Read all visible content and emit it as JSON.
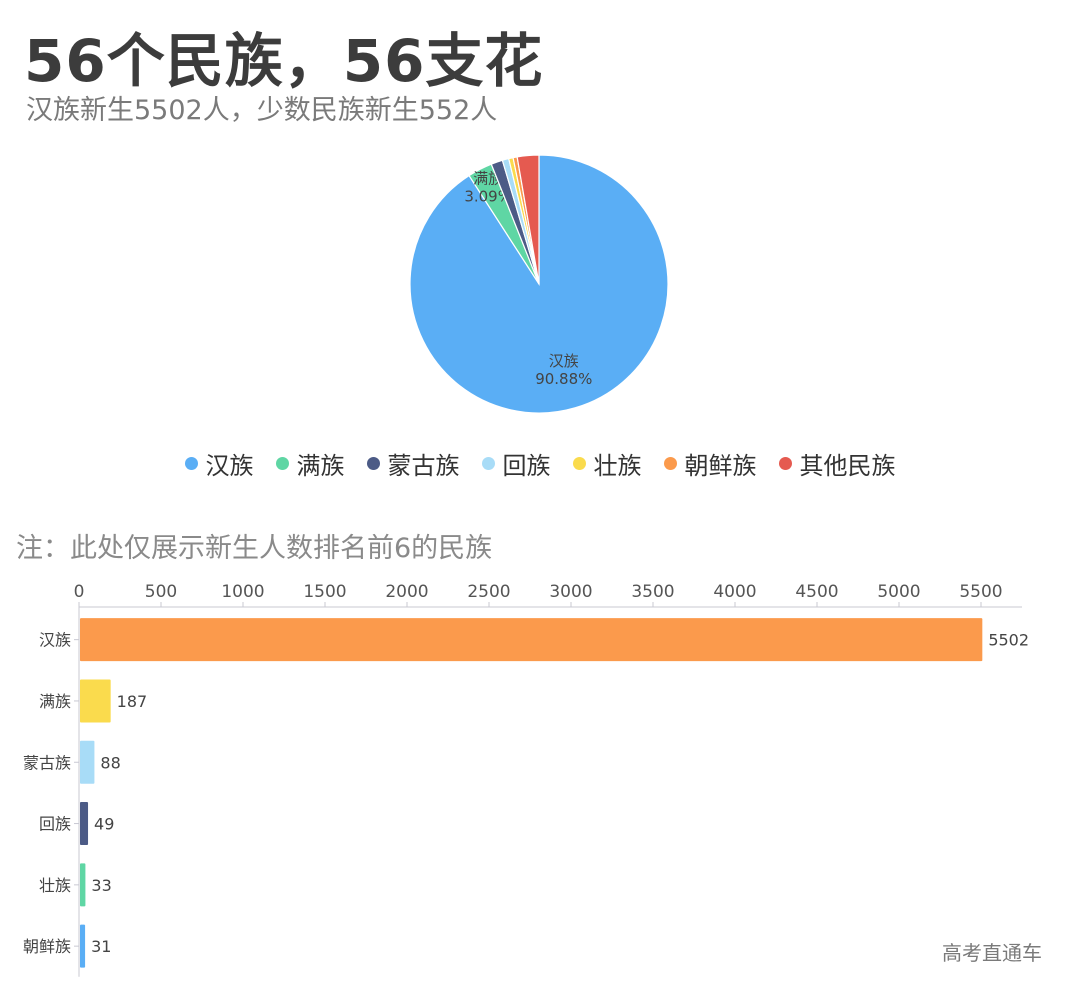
{
  "header": {
    "title": "56个民族，56支花",
    "subtitle": "汉族新生5502人，少数民族新生552人"
  },
  "note": "注：此处仅展示新生人数排名前6的民族",
  "watermark": "高考直通车",
  "colors": {
    "han": "#5aaef5",
    "man": "#5fd6a4",
    "menggu": "#4c5b86",
    "hui": "#a8dcf7",
    "zhuang": "#fadb4d",
    "chaoxian": "#fb9a4c",
    "other": "#e55a50"
  },
  "chart_data": [
    {
      "type": "pie",
      "legend_position": "bottom",
      "series": [
        {
          "name": "汉族",
          "value": 90.88,
          "color": "#5aaef5",
          "label": "汉族",
          "value_label": "90.88%"
        },
        {
          "name": "满族",
          "value": 3.09,
          "color": "#5fd6a4",
          "label": "满族",
          "value_label": "3.09%"
        },
        {
          "name": "蒙古族",
          "value": 1.45,
          "color": "#4c5b86"
        },
        {
          "name": "回族",
          "value": 0.81,
          "color": "#a8dcf7"
        },
        {
          "name": "壮族",
          "value": 0.55,
          "color": "#fadb4d"
        },
        {
          "name": "朝鲜族",
          "value": 0.51,
          "color": "#fb9a4c"
        },
        {
          "name": "其他民族",
          "value": 2.71,
          "color": "#e55a50"
        }
      ]
    },
    {
      "type": "bar",
      "orientation": "horizontal",
      "categories": [
        "汉族",
        "满族",
        "蒙古族",
        "回族",
        "壮族",
        "朝鲜族"
      ],
      "values": [
        5502,
        187,
        88,
        49,
        33,
        31
      ],
      "colors": [
        "#fb9a4c",
        "#fadb4d",
        "#a8dcf7",
        "#4c5b86",
        "#5fd6a4",
        "#5aaef5"
      ],
      "xlim": [
        0,
        5750
      ],
      "xticks": [
        0,
        500,
        1000,
        1500,
        2000,
        2500,
        3000,
        3500,
        4000,
        4500,
        5000,
        5500
      ],
      "axis_position": "top",
      "grid": false
    }
  ]
}
